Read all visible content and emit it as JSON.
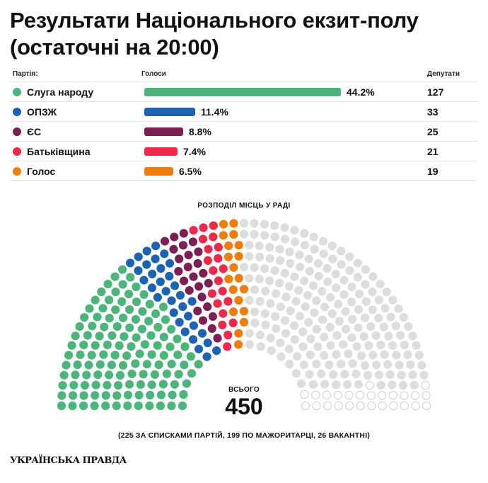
{
  "header": {
    "title": "Результати Національного екзит-полу (остаточні на 20:00)"
  },
  "table": {
    "col_party": "Партія:",
    "col_votes": "Голоси",
    "col_seats": "Депутати"
  },
  "chart_data": {
    "type": "bar",
    "categories": [
      "Слуга народу",
      "ОПЗЖ",
      "ЄС",
      "Батьківщина",
      "Голос"
    ],
    "values": [
      44.2,
      11.4,
      8.8,
      7.4,
      6.5
    ],
    "value_labels": [
      "44.2%",
      "11.4%",
      "8.8%",
      "7.4%",
      "6.5%"
    ],
    "seats": [
      127,
      33,
      25,
      21,
      19
    ],
    "colors": [
      "#4db57a",
      "#1d63b3",
      "#7c1f52",
      "#f0284a",
      "#f07c09"
    ],
    "xlim": [
      0,
      44.2
    ],
    "hemicycle": {
      "title": "РОЗПОДІЛ МІСЦЬ У РАДІ",
      "total_label": "ВСЬОГО",
      "total": "450",
      "seats_by_party": [
        127,
        33,
        25,
        21,
        19
      ],
      "party_colors": [
        "#4db57a",
        "#1d63b3",
        "#7c1f52",
        "#f0284a",
        "#f07c09"
      ],
      "other_filled": 199,
      "vacant": 26,
      "other_color": "#dddddd",
      "vacant_outline_color": "#cfcfcf",
      "note": "(225 ЗА СПИСКАМИ ПАРТІЙ, 199 ПО МАЖОРИТАРЦІ, 26 ВАКАНТНІ)"
    }
  },
  "footer": {
    "logo": "УКРАЇНСЬКА ПРАВДА"
  }
}
